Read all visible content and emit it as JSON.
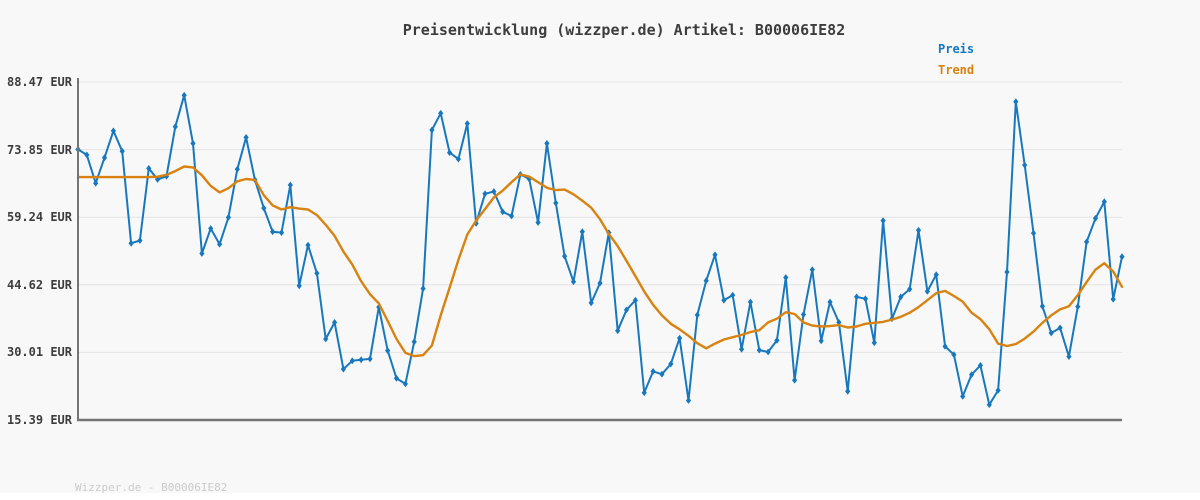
{
  "title": "Preisentwicklung (wizzper.de) Artikel: B00006IE82",
  "footer": "Wizzper.de - B00006IE82",
  "legend": [
    {
      "label": "Preis",
      "color": "#1878be"
    },
    {
      "label": "Trend",
      "color": "#d9820f"
    }
  ],
  "y_axis": {
    "tick_labels": [
      "88.47 EUR",
      "73.85 EUR",
      "59.24 EUR",
      "44.62 EUR",
      "30.01 EUR",
      "15.39 EUR"
    ],
    "tick_values": [
      88.47,
      73.85,
      59.24,
      44.62,
      30.01,
      15.39
    ]
  },
  "colors": {
    "background": "#f8f8f8",
    "gridline": "#e3e3e3",
    "axis": "#757575",
    "price": "#1878be",
    "trend": "#d9820f",
    "title_text": "#3d3d3d",
    "footer_text": "#cbcbcb"
  },
  "chart_data": {
    "type": "line",
    "title": "Preisentwicklung (wizzper.de) Artikel: B00006IE82",
    "xlabel": "",
    "ylabel": "EUR",
    "ylim": [
      15.39,
      88.47
    ],
    "grid": true,
    "legend_position": "top-right",
    "x_tick_labels": [],
    "series": [
      {
        "name": "Preis",
        "color": "#1878be",
        "marker": "diamond",
        "values": [
          73.9,
          72.7,
          66.6,
          72.1,
          77.9,
          73.5,
          53.6,
          54.2,
          69.8,
          67.4,
          68.1,
          78.8,
          85.6,
          75.2,
          51.4,
          56.8,
          53.4,
          59.2,
          69.6,
          76.5,
          67.3,
          61.2,
          56.1,
          55.9,
          66.2,
          44.4,
          53.2,
          47.1,
          32.9,
          36.5,
          26.4,
          28.2,
          28.4,
          28.6,
          39.8,
          30.4,
          24.4,
          23.2,
          32.3,
          43.8,
          78.1,
          81.7,
          73.2,
          71.8,
          79.5,
          57.9,
          64.3,
          64.8,
          60.4,
          59.5,
          68.5,
          67.5,
          58.1,
          75.2,
          62.3,
          50.8,
          45.3,
          56.1,
          40.7,
          45.0,
          55.9,
          34.7,
          39.2,
          41.3,
          21.3,
          25.9,
          25.3,
          27.5,
          33.1,
          19.6,
          38.1,
          45.5,
          51.1,
          41.3,
          42.4,
          30.7,
          40.9,
          30.5,
          30.1,
          32.6,
          46.2,
          24.0,
          38.2,
          47.9,
          32.5,
          40.9,
          36.5,
          21.6,
          42.0,
          41.6,
          32.1,
          58.5,
          37.3,
          42.0,
          43.7,
          56.4,
          43.2,
          46.8,
          31.3,
          29.5,
          20.5,
          25.2,
          27.2,
          18.7,
          21.8,
          47.4,
          84.2,
          70.5,
          55.8,
          40.0,
          34.2,
          35.3,
          29.1,
          39.9,
          53.9,
          59.0,
          62.6,
          41.5,
          50.7
        ]
      },
      {
        "name": "Trend",
        "color": "#d9820f",
        "marker": "none",
        "values": [
          67.9,
          67.9,
          67.9,
          67.9,
          67.9,
          67.9,
          67.9,
          67.9,
          67.9,
          68.0,
          68.4,
          69.2,
          70.2,
          70.0,
          68.3,
          66.0,
          64.6,
          65.5,
          67.0,
          67.5,
          67.3,
          64.0,
          61.8,
          60.9,
          61.4,
          61.1,
          60.9,
          59.7,
          57.6,
          55.2,
          51.8,
          49.0,
          45.4,
          42.6,
          40.6,
          36.8,
          32.9,
          29.9,
          29.2,
          29.4,
          31.5,
          38.0,
          44.0,
          50.0,
          55.5,
          58.5,
          61.0,
          63.5,
          65.0,
          66.8,
          68.5,
          68.0,
          66.8,
          65.6,
          65.1,
          65.2,
          64.2,
          62.8,
          61.3,
          58.8,
          55.6,
          53.0,
          49.8,
          46.5,
          43.2,
          40.3,
          38.0,
          36.2,
          35.0,
          33.6,
          32.0,
          30.9,
          31.9,
          32.8,
          33.3,
          33.8,
          34.4,
          34.8,
          36.5,
          37.3,
          38.7,
          38.3,
          36.5,
          35.8,
          35.6,
          35.7,
          35.9,
          35.4,
          35.6,
          36.2,
          36.4,
          36.6,
          37.1,
          37.7,
          38.6,
          39.8,
          41.3,
          42.8,
          43.3,
          42.2,
          41.0,
          38.6,
          37.2,
          35.0,
          31.9,
          31.4,
          31.8,
          33.0,
          34.5,
          36.4,
          38.0,
          39.3,
          40.0,
          42.4,
          45.2,
          47.9,
          49.3,
          47.5,
          44.2
        ]
      }
    ]
  }
}
